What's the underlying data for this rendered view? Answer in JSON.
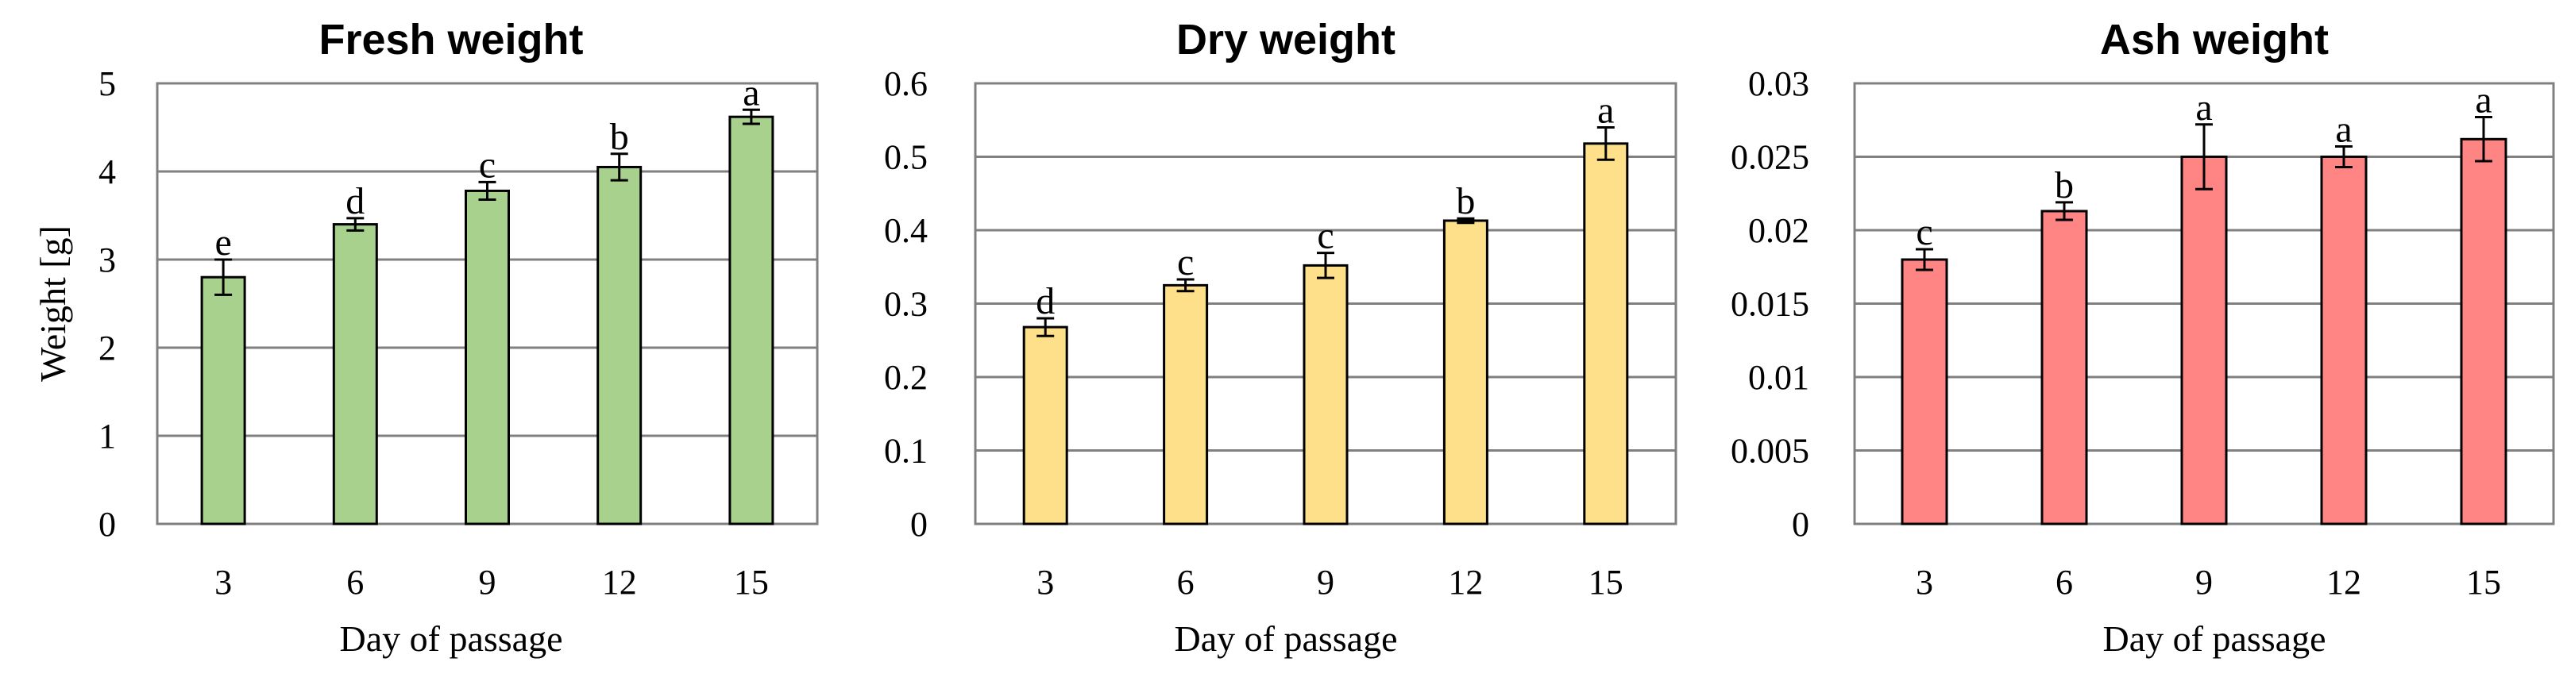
{
  "chart_data": [
    {
      "type": "bar",
      "title": "Fresh weight",
      "xlabel": "Day of passage",
      "ylabel": "Weight [g]",
      "categories": [
        "3",
        "6",
        "9",
        "12",
        "15"
      ],
      "values": [
        2.8,
        3.4,
        3.78,
        4.05,
        4.62
      ],
      "errors": [
        0.2,
        0.07,
        0.1,
        0.15,
        0.08
      ],
      "letters": [
        "e",
        "d",
        "c",
        "b",
        "a"
      ],
      "ylim": [
        0,
        5
      ],
      "yticks": [
        0,
        1,
        2,
        3,
        4,
        5
      ],
      "ytick_labels": [
        "0",
        "1",
        "2",
        "3",
        "4",
        "5"
      ],
      "grid": true,
      "color": "#a9d18e"
    },
    {
      "type": "bar",
      "title": "Dry weight",
      "xlabel": "Day of passage",
      "ylabel": "",
      "categories": [
        "3",
        "6",
        "9",
        "12",
        "15"
      ],
      "values": [
        0.268,
        0.325,
        0.352,
        0.413,
        0.518
      ],
      "errors": [
        0.012,
        0.008,
        0.017,
        0.003,
        0.022
      ],
      "letters": [
        "d",
        "c",
        "c",
        "b",
        "a"
      ],
      "ylim": [
        0,
        0.6
      ],
      "yticks": [
        0,
        0.1,
        0.2,
        0.3,
        0.4,
        0.5,
        0.6
      ],
      "ytick_labels": [
        "0",
        "0.1",
        "0.2",
        "0.3",
        "0.4",
        "0.5",
        "0.6"
      ],
      "grid": true,
      "color": "#ffe08a"
    },
    {
      "type": "bar",
      "title": "Ash weight",
      "xlabel": "Day of passage",
      "ylabel": "",
      "categories": [
        "3",
        "6",
        "9",
        "12",
        "15"
      ],
      "values": [
        0.018,
        0.0213,
        0.025,
        0.025,
        0.0262
      ],
      "errors": [
        0.0007,
        0.0006,
        0.0022,
        0.0007,
        0.0015
      ],
      "letters": [
        "c",
        "b",
        "a",
        "a",
        "a"
      ],
      "ylim": [
        0,
        0.03
      ],
      "yticks": [
        0,
        0.005,
        0.01,
        0.015,
        0.02,
        0.025,
        0.03
      ],
      "ytick_labels": [
        "0",
        "0.005",
        "0.01",
        "0.015",
        "0.02",
        "0.025",
        "0.03"
      ],
      "grid": true,
      "color": "#ff8585"
    }
  ]
}
